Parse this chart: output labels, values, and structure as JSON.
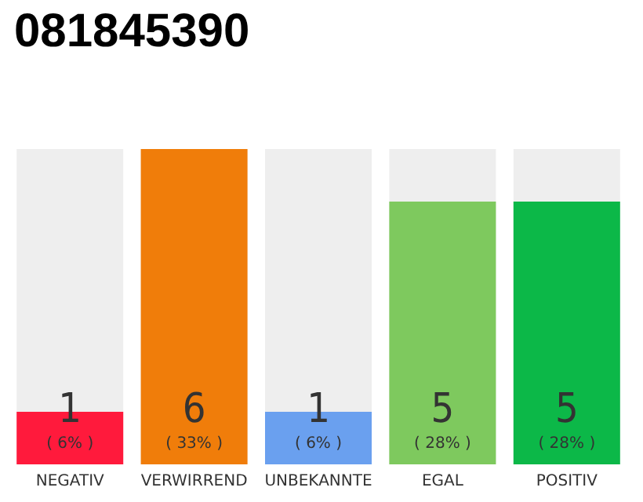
{
  "chart_data": {
    "type": "bar",
    "title": "081845390",
    "categories": [
      "NEGATIV",
      "VERWIRREND",
      "UNBEKANNTE",
      "EGAL",
      "POSITIV"
    ],
    "values": [
      1,
      6,
      1,
      5,
      5
    ],
    "colors": [
      "#ff1a3c",
      "#f07d0a",
      "#6aa0ef",
      "#7ec95e",
      "#0cb848"
    ],
    "value_labels": [
      "1\n( 6% )",
      "6\n( 33% )",
      "1\n( 6% )",
      "5\n( 28% )",
      "5\n( 28% )"
    ]
  }
}
